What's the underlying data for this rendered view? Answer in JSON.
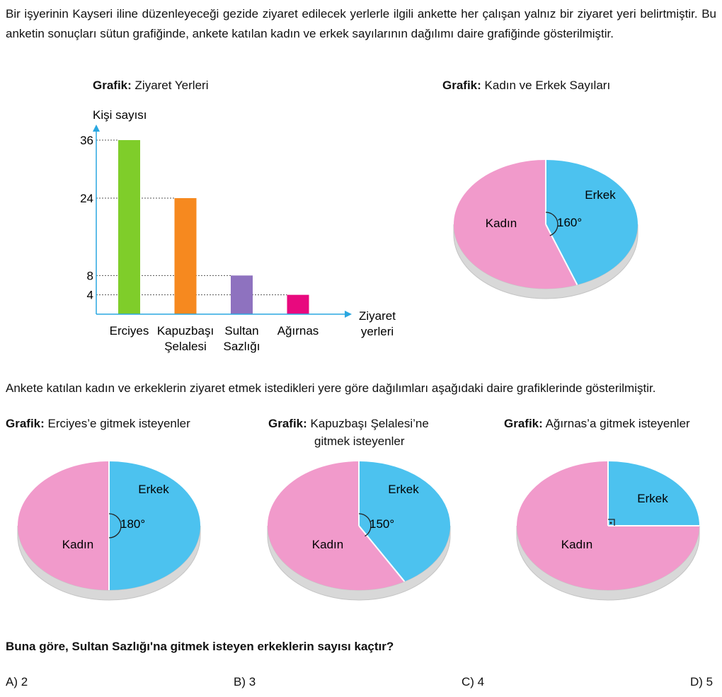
{
  "intro_text": "Bir işyerinin Kayseri iline düzenleyeceği gezide ziyaret edilecek yerlerle ilgili ankette her çalışan yalnız bir ziyaret yeri belirtmiştir. Bu anketin sonuçları sütun grafiğinde, ankete katılan kadın ve erkek sayılarının dağılımı daire grafiğinde gösterilmiştir.",
  "graph_prefix": "Grafik:",
  "second_paragraph": "Ankete katılan kadın ve erkeklerin ziyaret etmek istedikleri yere göre dağılımları aşağıdaki daire grafiklerinde gösterilmiştir.",
  "question": "Buna göre, Sultan Sazlığı'na gitmek isteyen erkeklerin sayısı kaçtır?",
  "options": [
    "A) 2",
    "B) 3",
    "C) 4",
    "D) 5"
  ],
  "colors": {
    "kadin": "#f19acb",
    "erkek": "#4cc2ef",
    "pie_side": "#d8d8d8"
  },
  "chart_data": [
    {
      "type": "bar",
      "title": "Ziyaret Yerleri",
      "ylabel": "Kişi sayısı",
      "xlabel_lines": [
        "Ziyaret",
        "yerleri"
      ],
      "categories": [
        [
          "Erciyes"
        ],
        [
          "Kapuzbaşı",
          "Şelalesi"
        ],
        [
          "Sultan",
          "Sazlığı"
        ],
        [
          "Ağırnas"
        ]
      ],
      "values": [
        36,
        24,
        8,
        4
      ],
      "yticks": [
        36,
        24,
        8,
        4
      ],
      "ylim": [
        0,
        36
      ],
      "colors": [
        "#7fcd2a",
        "#f6891f",
        "#8e72bf",
        "#e8097e"
      ]
    },
    {
      "type": "pie",
      "title": "Kadın ve Erkek Sayıları",
      "labels": [
        "Kadın",
        "Erkek"
      ],
      "angles": [
        200,
        160
      ],
      "angle_label": "160°"
    },
    {
      "type": "pie",
      "title_lines": [
        "Erciyes’e gitmek isteyenler"
      ],
      "labels": [
        "Kadın",
        "Erkek"
      ],
      "angles": [
        180,
        180
      ],
      "angle_label": "180°"
    },
    {
      "type": "pie",
      "title_lines": [
        "Kapuzbaşı Şelalesi’ne",
        "gitmek isteyenler"
      ],
      "labels": [
        "Kadın",
        "Erkek"
      ],
      "angles": [
        210,
        150
      ],
      "angle_label": "150°"
    },
    {
      "type": "pie",
      "title_lines": [
        "Ağırnas’a gitmek isteyenler"
      ],
      "labels": [
        "Kadın",
        "Erkek"
      ],
      "angles": [
        270,
        90
      ],
      "angle_label": ""
    }
  ]
}
